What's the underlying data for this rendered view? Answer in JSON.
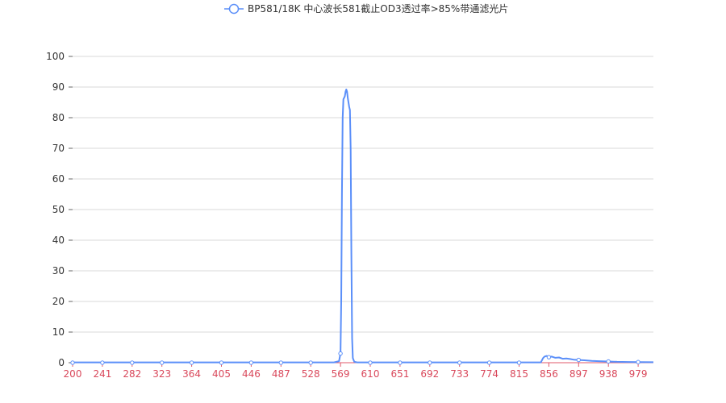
{
  "chart_data": {
    "type": "line",
    "title": "",
    "xlabel": "",
    "ylabel": "",
    "legend": {
      "position": "top-center",
      "entries": [
        "BP581/18K 中心波长581截止OD3透过率>85%带通滤光片"
      ]
    },
    "xlim": [
      200,
      1000
    ],
    "ylim": [
      0,
      100
    ],
    "x_ticks": [
      "200",
      "241",
      "282",
      "323",
      "364",
      "405",
      "446",
      "487",
      "528",
      "569",
      "610",
      "651",
      "692",
      "733",
      "774",
      "815",
      "856",
      "897",
      "938",
      "979"
    ],
    "y_ticks": [
      "0",
      "10",
      "20",
      "30",
      "40",
      "50",
      "60",
      "70",
      "80",
      "90",
      "100"
    ],
    "grid": {
      "horizontal": true,
      "vertical": false
    },
    "colors": {
      "series": "#5b8ff9",
      "x_axis_line": "#e05a6b",
      "x_tick_text": "#d9485b",
      "y_tick_text": "#333333",
      "grid": "#d9d9d9"
    },
    "series": [
      {
        "name": "BP581/18K 中心波长581截止OD3透过率>85%带通滤光片",
        "points": [
          [
            200,
            0.1
          ],
          [
            300,
            0.1
          ],
          [
            400,
            0.1
          ],
          [
            500,
            0.1
          ],
          [
            560,
            0.1
          ],
          [
            567,
            0.5
          ],
          [
            569,
            3
          ],
          [
            570,
            20
          ],
          [
            571,
            55
          ],
          [
            572,
            80
          ],
          [
            573,
            86
          ],
          [
            574,
            86.5
          ],
          [
            575,
            87
          ],
          [
            576,
            88.5
          ],
          [
            577,
            89.2
          ],
          [
            578,
            88.5
          ],
          [
            579,
            86.5
          ],
          [
            580,
            85
          ],
          [
            581,
            83.5
          ],
          [
            582,
            82.5
          ],
          [
            583,
            70
          ],
          [
            584,
            35
          ],
          [
            585,
            8
          ],
          [
            586,
            1.5
          ],
          [
            588,
            0.3
          ],
          [
            592,
            0.1
          ],
          [
            650,
            0.1
          ],
          [
            700,
            0.1
          ],
          [
            750,
            0.1
          ],
          [
            800,
            0.1
          ],
          [
            845,
            0.1
          ],
          [
            848,
            1.5
          ],
          [
            850,
            2
          ],
          [
            853,
            2.2
          ],
          [
            856,
            1.8
          ],
          [
            860,
            2
          ],
          [
            865,
            1.6
          ],
          [
            870,
            1.7
          ],
          [
            875,
            1.3
          ],
          [
            880,
            1.4
          ],
          [
            885,
            1.2
          ],
          [
            890,
            1
          ],
          [
            897,
            0.9
          ],
          [
            905,
            0.8
          ],
          [
            915,
            0.6
          ],
          [
            925,
            0.5
          ],
          [
            938,
            0.4
          ],
          [
            950,
            0.3
          ],
          [
            965,
            0.25
          ],
          [
            979,
            0.2
          ],
          [
            1000,
            0.15
          ]
        ],
        "markers_at": [
          [
            200,
            0
          ],
          [
            241,
            0
          ],
          [
            282,
            0
          ],
          [
            323,
            0
          ],
          [
            364,
            0
          ],
          [
            405,
            0
          ],
          [
            446,
            0
          ],
          [
            487,
            0
          ],
          [
            528,
            0
          ],
          [
            569,
            3
          ],
          [
            610,
            0
          ],
          [
            651,
            0
          ],
          [
            692,
            0
          ],
          [
            733,
            0
          ],
          [
            774,
            0
          ],
          [
            815,
            0
          ],
          [
            856,
            1.8
          ],
          [
            897,
            0.9
          ],
          [
            938,
            0.4
          ],
          [
            979,
            0.2
          ]
        ]
      }
    ]
  }
}
